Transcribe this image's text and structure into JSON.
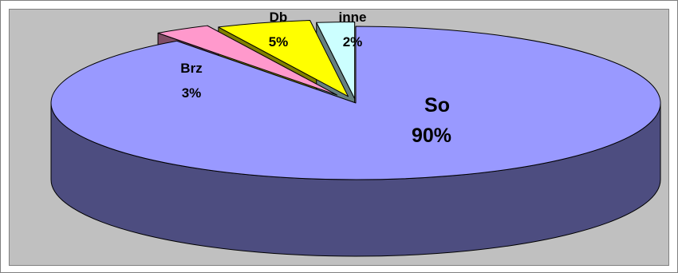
{
  "chart_data": {
    "type": "pie",
    "title": "",
    "categories": [
      "So",
      "Brz",
      "Db",
      "inne"
    ],
    "values": [
      90,
      3,
      5,
      2
    ],
    "labels": [
      {
        "name": "So",
        "percent": "90%"
      },
      {
        "name": "Brz",
        "percent": "3%"
      },
      {
        "name": "Db",
        "percent": "5%"
      },
      {
        "name": "inne",
        "percent": "2%"
      }
    ],
    "style": "3d-pie-exploded",
    "colors": {
      "So": "#9999ff",
      "Brz": "#ff99cc",
      "Db": "#ffff00",
      "inne": "#ccffff",
      "plot_background": "#c0c0c0"
    },
    "legend": "none",
    "grid": false
  }
}
